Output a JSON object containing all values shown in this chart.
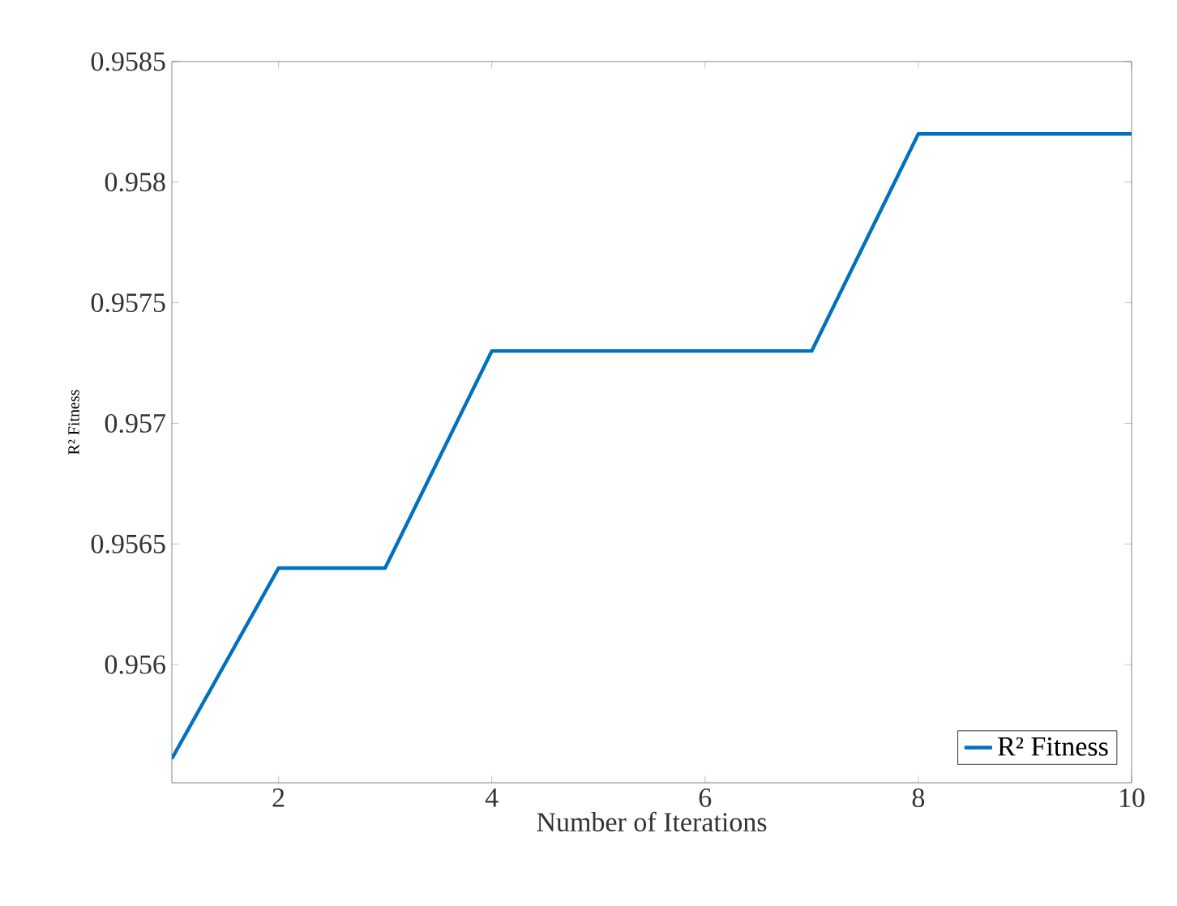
{
  "chart_data": {
    "type": "line",
    "xlabel": "Number of Iterations",
    "ylabel": "R² Fitness",
    "x": [
      1,
      2,
      3,
      4,
      5,
      6,
      7,
      8,
      9,
      10
    ],
    "series": [
      {
        "name": "R² Fitness",
        "color": "#0072bd",
        "values": [
          0.95561,
          0.9564,
          0.9564,
          0.9573,
          0.9573,
          0.9573,
          0.9573,
          0.9582,
          0.9582,
          0.9582
        ]
      }
    ],
    "xlim": [
      1,
      10
    ],
    "ylim": [
      0.95551,
      0.9585
    ],
    "xticks": [
      2,
      4,
      6,
      8,
      10
    ],
    "yticks": [
      0.956,
      0.9565,
      0.957,
      0.9575,
      0.958,
      0.9585
    ],
    "legend": "bottom right",
    "grid": false,
    "marker": "none",
    "line_style": "solid"
  }
}
